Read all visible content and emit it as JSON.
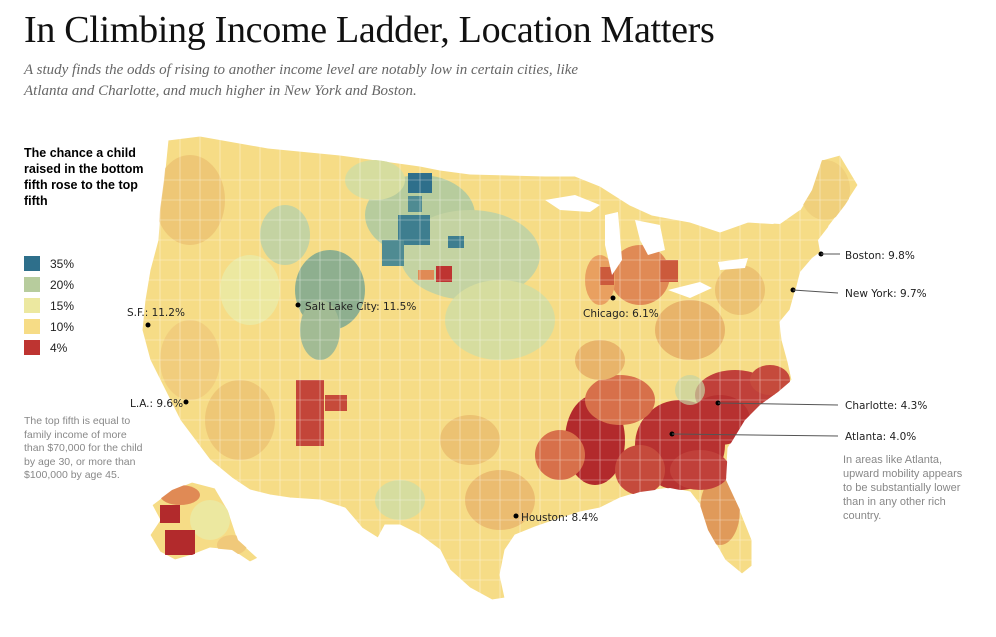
{
  "title": "In Climbing Income Ladder, Location Matters",
  "subtitle": "A study finds the odds of rising to another income level are notably low in certain cities, like Atlanta and Charlotte, and much higher in New York and Boston.",
  "legend": {
    "title": "The chance a child raised in the bottom fifth rose to the top fifth",
    "items": [
      {
        "label": "35%",
        "color": "#2e6f8b"
      },
      {
        "label": "20%",
        "color": "#b7cc9d"
      },
      {
        "label": "15%",
        "color": "#ece8a0"
      },
      {
        "label": "10%",
        "color": "#f6dc86"
      },
      {
        "label": "4%",
        "color": "#be3431"
      }
    ]
  },
  "notes": {
    "left": "The top fifth is equal to family income of more than $70,000 for the child by age 30, or more than $100,000 by age 45.",
    "right": "In areas like Atlanta, upward mobility appears to be substantially lower than in any other rich country."
  },
  "cities": [
    {
      "label": "S.F.: 11.2%"
    },
    {
      "label": "Salt Lake City: 11.5%"
    },
    {
      "label": "L.A.: 9.6%"
    },
    {
      "label": "Chicago: 6.1%"
    },
    {
      "label": "Houston: 8.4%"
    },
    {
      "label": "Boston: 9.8%"
    },
    {
      "label": "New York: 9.7%"
    },
    {
      "label": "Charlotte: 4.3%"
    },
    {
      "label": "Atlanta: 4.0%"
    }
  ]
}
